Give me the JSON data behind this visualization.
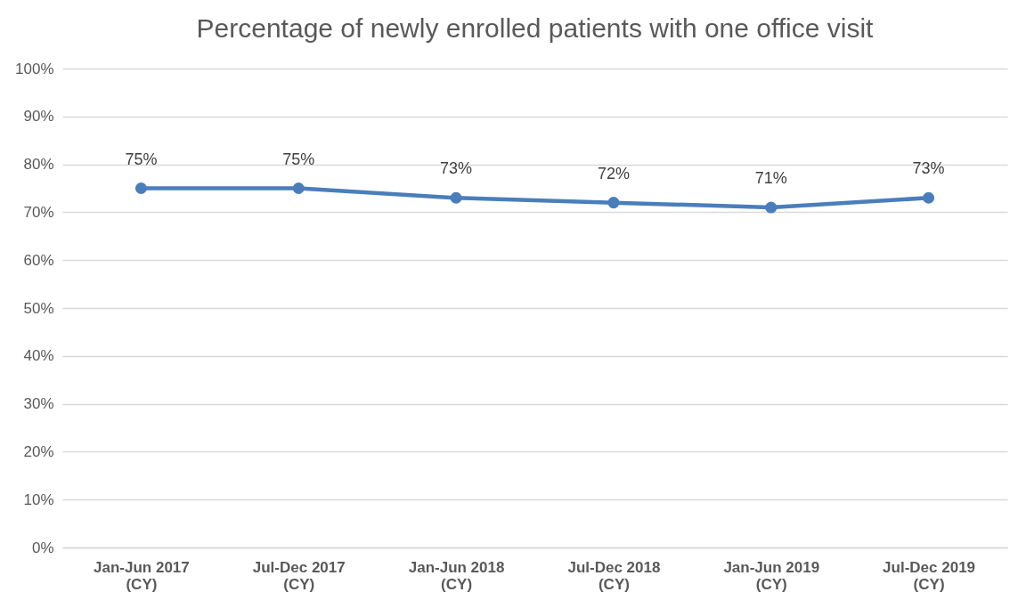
{
  "chart_data": {
    "type": "line",
    "title": "Percentage of newly enrolled patients with one office visit",
    "categories": [
      "Jan-Jun 2017 (CY)",
      "Jul-Dec 2017 (CY)",
      "Jan-Jun 2018 (CY)",
      "Jul-Dec 2018 (CY)",
      "Jan-Jun 2019 (CY)",
      "Jul-Dec 2019 (CY)"
    ],
    "series": [
      {
        "color": "#4a7ebb",
        "values": [
          75,
          75,
          73,
          72,
          71,
          73
        ],
        "value_labels": [
          "75%",
          "75%",
          "73%",
          "72%",
          "71%",
          "73%"
        ]
      }
    ],
    "ylim": [
      0,
      100
    ],
    "yticks": [
      {
        "value": 0,
        "label": "0%"
      },
      {
        "value": 10,
        "label": "10%"
      },
      {
        "value": 20,
        "label": "20%"
      },
      {
        "value": 30,
        "label": "30%"
      },
      {
        "value": 40,
        "label": "40%"
      },
      {
        "value": 50,
        "label": "50%"
      },
      {
        "value": 60,
        "label": "60%"
      },
      {
        "value": 70,
        "label": "70%"
      },
      {
        "value": 80,
        "label": "80%"
      },
      {
        "value": 90,
        "label": "90%"
      },
      {
        "value": 100,
        "label": "100%"
      }
    ],
    "grid": "y",
    "marker": "circle",
    "line_style": "solid"
  }
}
